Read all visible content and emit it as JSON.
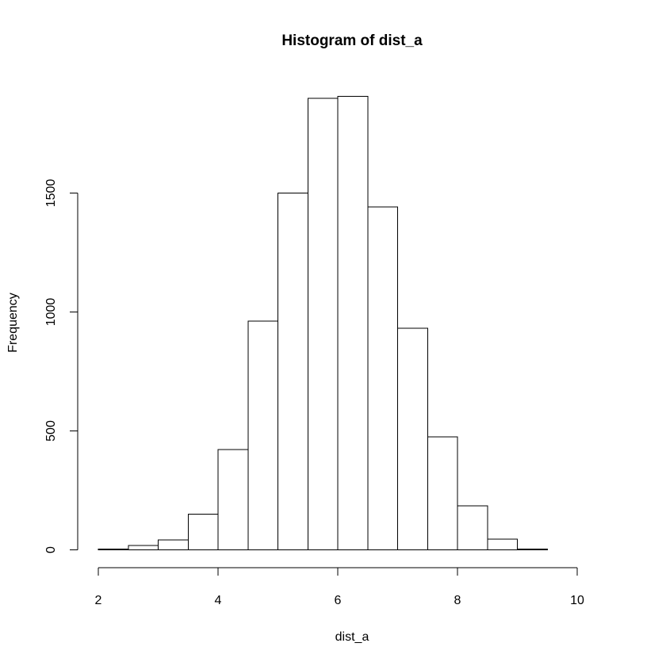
{
  "chart_data": {
    "type": "bar",
    "title": "Histogram of dist_a",
    "xlabel": "dist_a",
    "ylabel": "Frequency",
    "xlim": [
      2,
      10.5
    ],
    "ylim": [
      0,
      1900
    ],
    "bin_edges": [
      2.0,
      2.5,
      3.0,
      3.5,
      4.0,
      4.5,
      5.0,
      5.5,
      6.0,
      6.5,
      7.0,
      7.5,
      8.0,
      8.5,
      9.0,
      9.5,
      10.0,
      10.5
    ],
    "values": [
      3,
      18,
      42,
      150,
      422,
      962,
      1500,
      1898,
      1906,
      1442,
      932,
      475,
      185,
      45,
      3,
      0,
      0
    ],
    "x_ticks": [
      {
        "value": 2,
        "label": "2"
      },
      {
        "value": 4,
        "label": "4"
      },
      {
        "value": 6,
        "label": "6"
      },
      {
        "value": 8,
        "label": "8"
      },
      {
        "value": 10,
        "label": "10"
      }
    ],
    "y_ticks": [
      {
        "value": 0,
        "label": "0"
      },
      {
        "value": 500,
        "label": "500"
      },
      {
        "value": 1000,
        "label": "1000"
      },
      {
        "value": 1500,
        "label": "1500"
      }
    ],
    "grid": false,
    "bar_fill": "#ffffff",
    "bar_stroke": "#000000"
  }
}
